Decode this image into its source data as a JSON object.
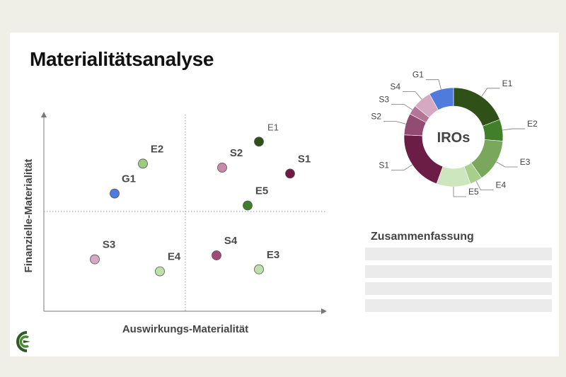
{
  "slide": {
    "title": "Materialitätsanalyse",
    "summary_title": "Zusammenfassung",
    "summary_placeholder_count": 4
  },
  "chart_data": [
    {
      "type": "scatter",
      "xlabel": "Auswirkungs-Materialität",
      "ylabel": "Finanzielle-Materialität",
      "xlim": [
        0,
        10
      ],
      "ylim": [
        0,
        10
      ],
      "quadrant_dividers": {
        "x": 5,
        "y": 5
      },
      "points": [
        {
          "label": "E1",
          "x": 7.6,
          "y": 8.5,
          "color": "#2f5117",
          "label_style": "light"
        },
        {
          "label": "E2",
          "x": 3.5,
          "y": 7.4,
          "color": "#9ccd7f",
          "label_style": "bold"
        },
        {
          "label": "S2",
          "x": 6.3,
          "y": 7.2,
          "color": "#c98aa8",
          "label_style": "bold"
        },
        {
          "label": "S1",
          "x": 8.7,
          "y": 6.9,
          "color": "#6e1a42",
          "label_style": "bold"
        },
        {
          "label": "G1",
          "x": 2.5,
          "y": 5.9,
          "color": "#4f7bdc",
          "label_style": "bold"
        },
        {
          "label": "E5",
          "x": 7.2,
          "y": 5.3,
          "color": "#3f7f2a",
          "label_style": "bold"
        },
        {
          "label": "S3",
          "x": 1.8,
          "y": 2.6,
          "color": "#d6a9c2",
          "label_style": "bold"
        },
        {
          "label": "E4",
          "x": 4.1,
          "y": 2.0,
          "color": "#bfe0aa",
          "label_style": "bold"
        },
        {
          "label": "S4",
          "x": 6.1,
          "y": 2.8,
          "color": "#a04a75",
          "label_style": "bold"
        },
        {
          "label": "E3",
          "x": 7.6,
          "y": 2.1,
          "color": "#bfe0aa",
          "label_style": "bold"
        }
      ]
    },
    {
      "type": "pie",
      "center_label": "IROs",
      "slices": [
        {
          "label": "E1",
          "value": 19,
          "color": "#2f5117"
        },
        {
          "label": "E2",
          "value": 7,
          "color": "#427f2a"
        },
        {
          "label": "E3",
          "value": 14,
          "color": "#79a85c"
        },
        {
          "label": "E4",
          "value": 4,
          "color": "#a6cf8c"
        },
        {
          "label": "E5",
          "value": 11,
          "color": "#cde6bd"
        },
        {
          "label": "S1",
          "value": 20,
          "color": "#6b1d45"
        },
        {
          "label": "S2",
          "value": 7,
          "color": "#924c73"
        },
        {
          "label": "S3",
          "value": 3,
          "color": "#b57596"
        },
        {
          "label": "S4",
          "value": 6,
          "color": "#d6a9c2"
        },
        {
          "label": "G1",
          "value": 8,
          "color": "#4f7bdc"
        }
      ]
    }
  ]
}
